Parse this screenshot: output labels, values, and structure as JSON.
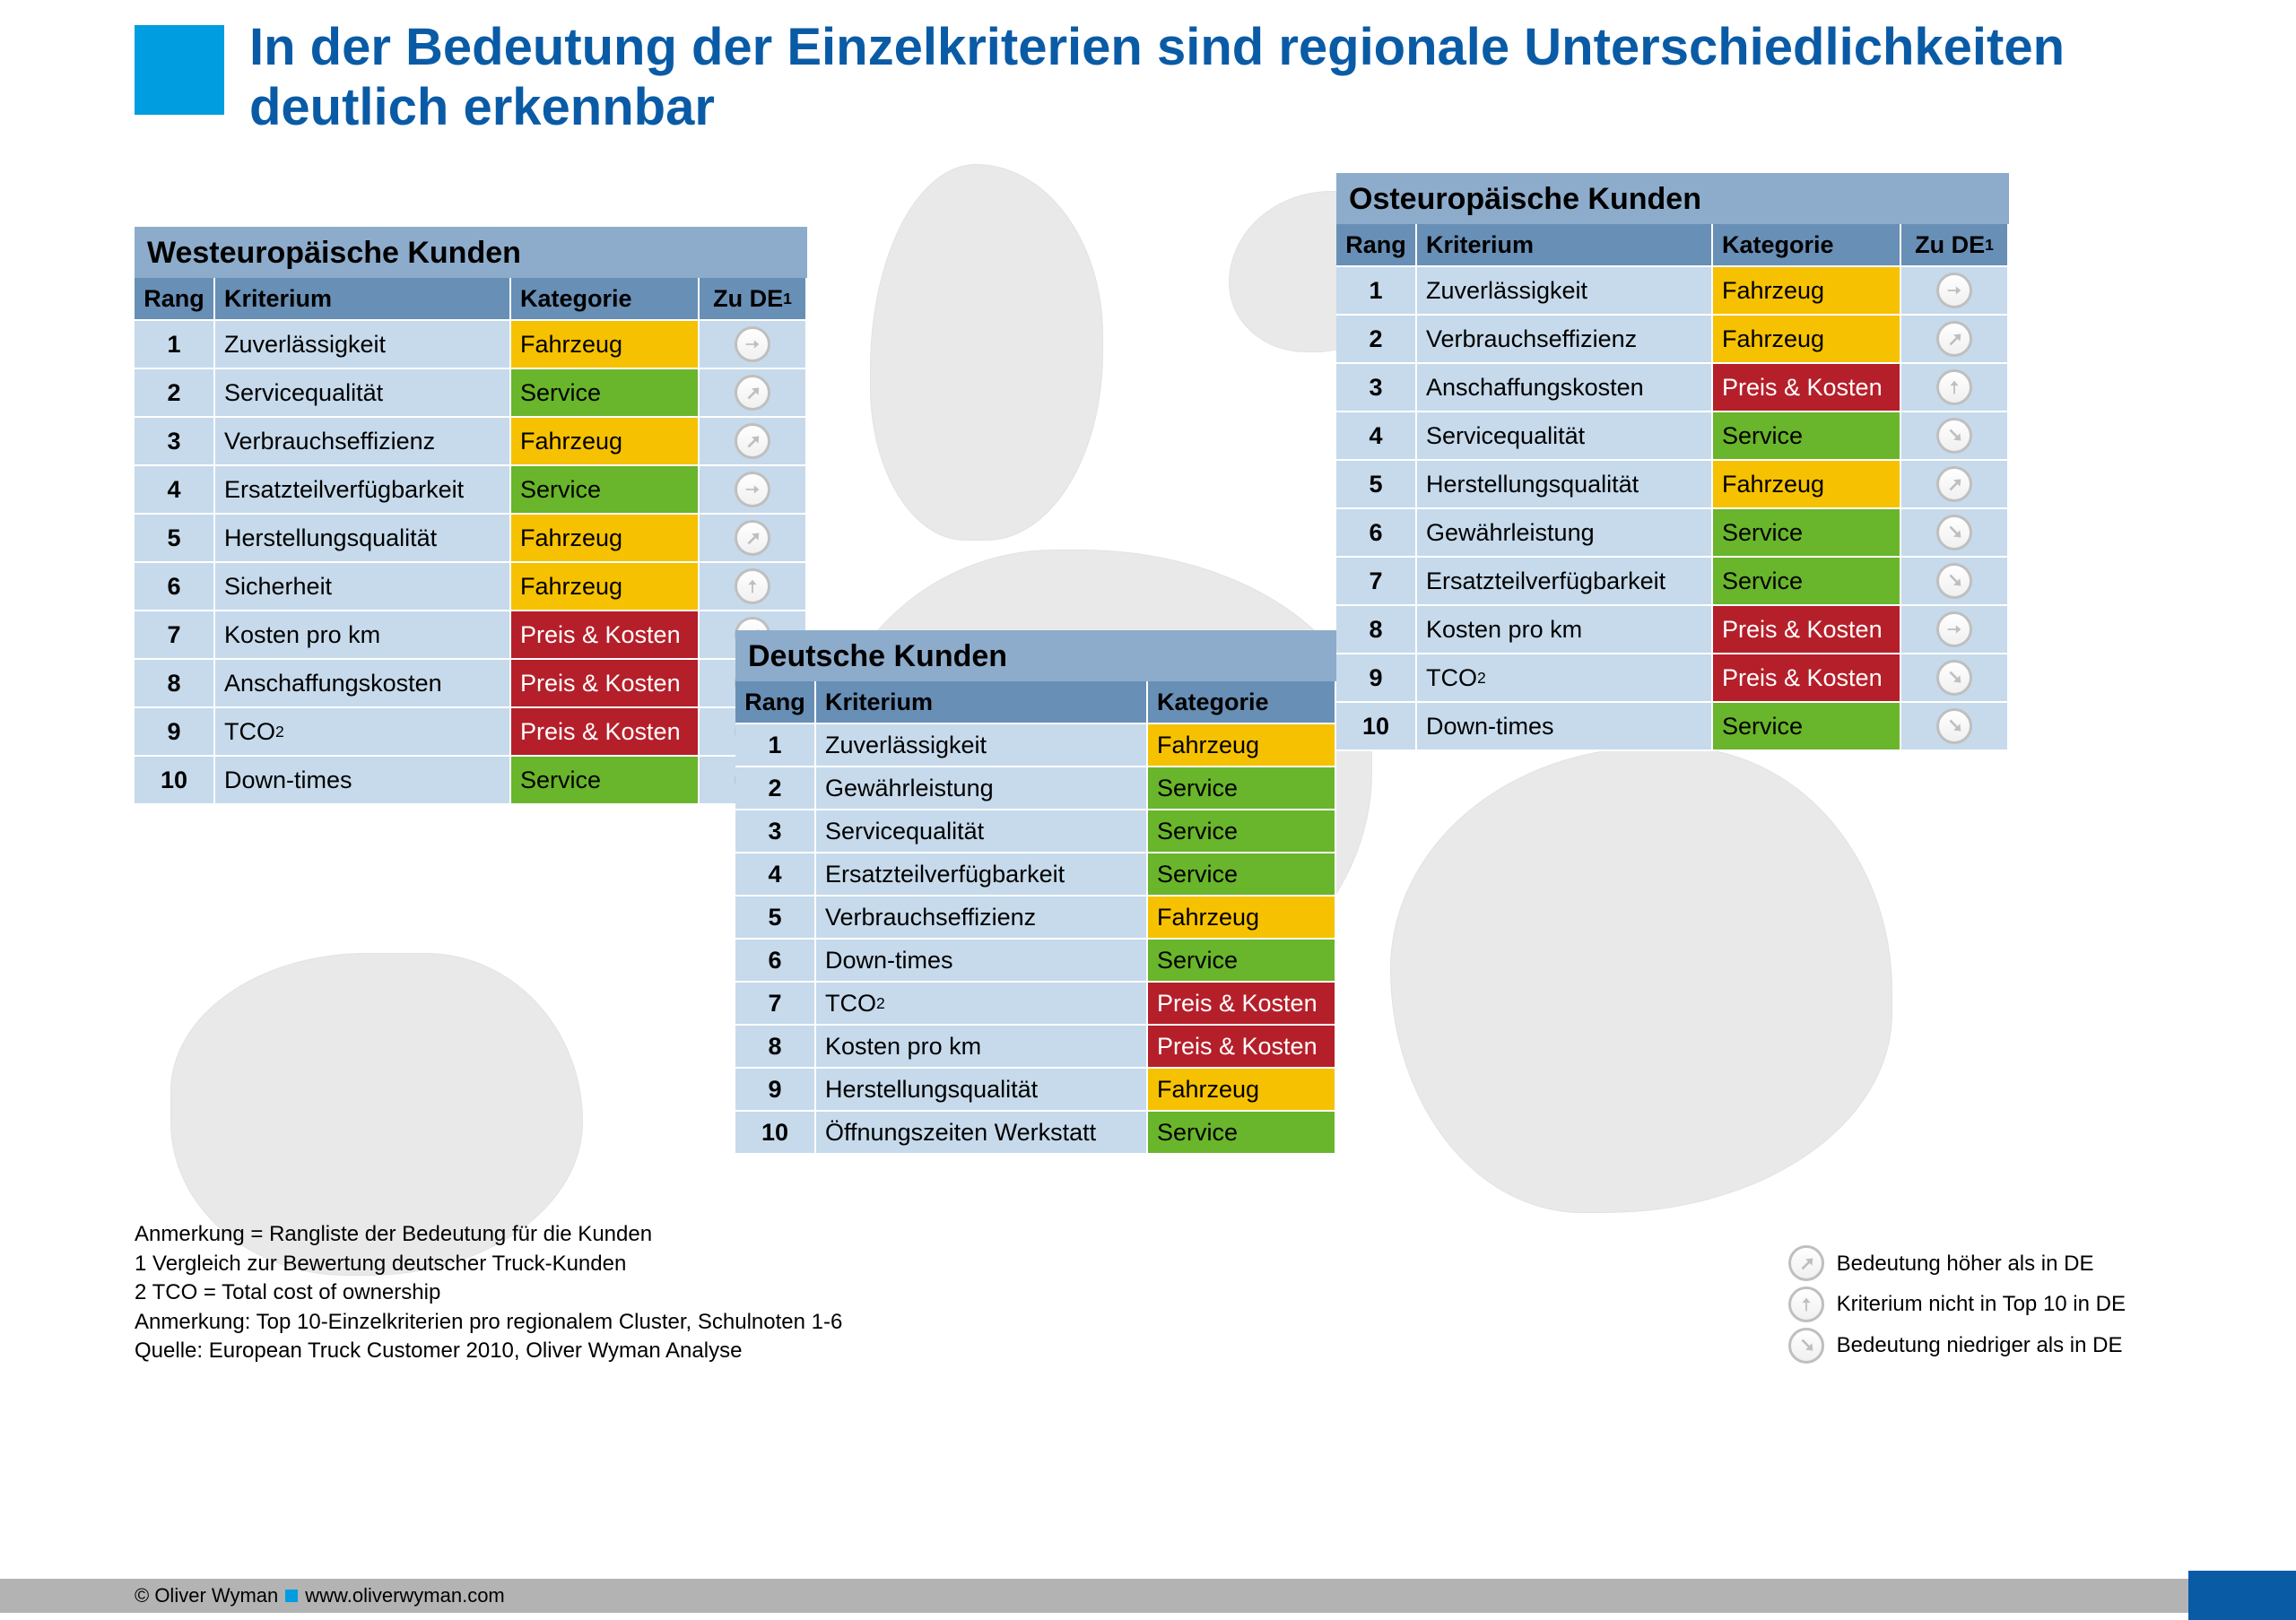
{
  "colors": {
    "brand_blue": "#0a5ba6",
    "brand_cyan": "#009de0",
    "title_bg": "#8daccb",
    "header_bg": "#688fb6",
    "row_bg": "#c6daeb",
    "row_alt_bg": "#c6daeb",
    "map_gray": "#e9e9e9",
    "footer_gray": "#b3b3b3",
    "arrow_gray_fill": "#bfbfbf",
    "cat_fahrzeug_bg": "#f6c100",
    "cat_fahrzeug_fg": "#000000",
    "cat_service_bg": "#69b52b",
    "cat_service_fg": "#000000",
    "cat_preis_bg": "#b51f2a",
    "cat_preis_fg": "#ffffff"
  },
  "title": "In der Bedeutung der Einzelkriterien sind regionale Unterschiedlichkeiten deutlich erkennbar",
  "column_labels": {
    "rang": "Rang",
    "kriterium": "Kriterium",
    "kategorie": "Kategorie",
    "zu_de": "Zu DE",
    "zu_de_sup": "1"
  },
  "categories": {
    "Fahrzeug": {
      "bg": "#f6c100",
      "fg": "#000000"
    },
    "Service": {
      "bg": "#69b52b",
      "fg": "#000000"
    },
    "Preis & Kosten": {
      "bg": "#b51f2a",
      "fg": "#ffffff"
    }
  },
  "arrows": {
    "same": "right",
    "higher": "up-right",
    "not_top10": "up",
    "lower": "down-right"
  },
  "panels": {
    "west": {
      "title": "Westeuropäische Kunden",
      "has_zu_de": true,
      "rows": [
        {
          "rang": 1,
          "krit": "Zuverlässigkeit",
          "kat": "Fahrzeug",
          "arrow": "right"
        },
        {
          "rang": 2,
          "krit": "Servicequalität",
          "kat": "Service",
          "arrow": "up-right"
        },
        {
          "rang": 3,
          "krit": "Verbrauchseffizienz",
          "kat": "Fahrzeug",
          "arrow": "up-right"
        },
        {
          "rang": 4,
          "krit": "Ersatzteilverfügbarkeit",
          "kat": "Service",
          "arrow": "right"
        },
        {
          "rang": 5,
          "krit": "Herstellungsqualität",
          "kat": "Fahrzeug",
          "arrow": "up-right"
        },
        {
          "rang": 6,
          "krit": "Sicherheit",
          "kat": "Fahrzeug",
          "arrow": "up"
        },
        {
          "rang": 7,
          "krit": "Kosten pro km",
          "kat": "Preis & Kosten",
          "arrow": "up-right"
        },
        {
          "rang": 8,
          "krit": "Anschaffungskosten",
          "kat": "Preis & Kosten",
          "arrow": "up"
        },
        {
          "rang": 9,
          "krit_html": "TCO<sup>2</sup>",
          "kat": "Preis & Kosten",
          "arrow": "down-right"
        },
        {
          "rang": 10,
          "krit": "Down-times",
          "kat": "Service",
          "arrow": "down-right"
        }
      ]
    },
    "de": {
      "title": "Deutsche Kunden",
      "has_zu_de": false,
      "rows": [
        {
          "rang": 1,
          "krit": "Zuverlässigkeit",
          "kat": "Fahrzeug"
        },
        {
          "rang": 2,
          "krit": "Gewährleistung",
          "kat": "Service"
        },
        {
          "rang": 3,
          "krit": "Servicequalität",
          "kat": "Service"
        },
        {
          "rang": 4,
          "krit": "Ersatzteilverfügbarkeit",
          "kat": "Service"
        },
        {
          "rang": 5,
          "krit": "Verbrauchseffizienz",
          "kat": "Fahrzeug"
        },
        {
          "rang": 6,
          "krit": "Down-times",
          "kat": "Service"
        },
        {
          "rang": 7,
          "krit_html": "TCO<sup>2</sup>",
          "kat": "Preis & Kosten"
        },
        {
          "rang": 8,
          "krit": "Kosten pro km",
          "kat": "Preis & Kosten"
        },
        {
          "rang": 9,
          "krit": "Herstellungsqualität",
          "kat": "Fahrzeug"
        },
        {
          "rang": 10,
          "krit": "Öffnungszeiten Werkstatt",
          "kat": "Service"
        }
      ]
    },
    "east": {
      "title": "Osteuropäische Kunden",
      "has_zu_de": true,
      "rows": [
        {
          "rang": 1,
          "krit": "Zuverlässigkeit",
          "kat": "Fahrzeug",
          "arrow": "right"
        },
        {
          "rang": 2,
          "krit": "Verbrauchseffizienz",
          "kat": "Fahrzeug",
          "arrow": "up-right"
        },
        {
          "rang": 3,
          "krit": "Anschaffungskosten",
          "kat": "Preis & Kosten",
          "arrow": "up"
        },
        {
          "rang": 4,
          "krit": "Servicequalität",
          "kat": "Service",
          "arrow": "down-right"
        },
        {
          "rang": 5,
          "krit": "Herstellungsqualität",
          "kat": "Fahrzeug",
          "arrow": "up-right"
        },
        {
          "rang": 6,
          "krit": "Gewährleistung",
          "kat": "Service",
          "arrow": "down-right"
        },
        {
          "rang": 7,
          "krit": "Ersatzteilverfügbarkeit",
          "kat": "Service",
          "arrow": "down-right"
        },
        {
          "rang": 8,
          "krit": "Kosten pro km",
          "kat": "Preis & Kosten",
          "arrow": "right"
        },
        {
          "rang": 9,
          "krit_html": "TCO<sup>2</sup>",
          "kat": "Preis & Kosten",
          "arrow": "down-right"
        },
        {
          "rang": 10,
          "krit": "Down-times",
          "kat": "Service",
          "arrow": "down-right"
        }
      ]
    }
  },
  "notes": [
    "Anmerkung = Rangliste der Bedeutung für die Kunden",
    "1 Vergleich zur Bewertung deutscher Truck-Kunden",
    "2 TCO = Total cost of ownership",
    "Anmerkung: Top 10-Einzelkriterien pro regionalem Cluster, Schulnoten 1-6",
    "Quelle: European Truck Customer 2010, Oliver Wyman Analyse"
  ],
  "legend": [
    {
      "arrow": "up-right",
      "label": "Bedeutung höher als in DE"
    },
    {
      "arrow": "up",
      "label": "Kriterium nicht in Top 10 in DE"
    },
    {
      "arrow": "down-right",
      "label": "Bedeutung niedriger als in DE"
    }
  ],
  "footer": {
    "copyright": "© Oliver Wyman",
    "url": "www.oliverwyman.com"
  }
}
